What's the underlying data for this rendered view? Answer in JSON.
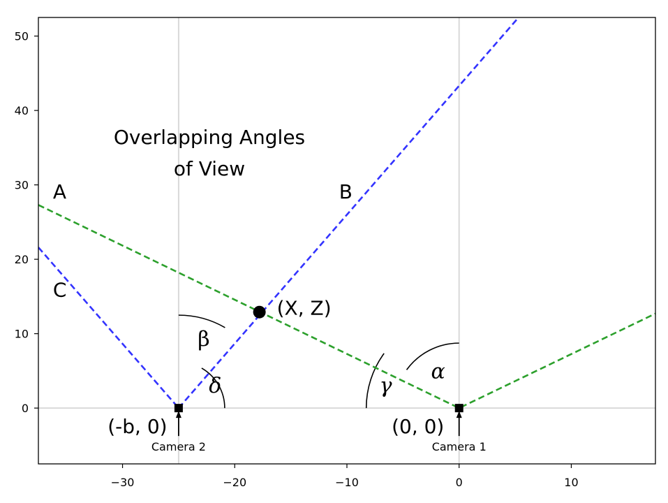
{
  "chart_data": {
    "type": "line",
    "title": "Overlapping Angles of View",
    "title_lines": [
      "Overlapping Angles",
      "of View"
    ],
    "xlabel": "",
    "ylabel": "",
    "xlim": [
      -37.5,
      17.5
    ],
    "ylim": [
      -7.5,
      52.5
    ],
    "x_ticks": [
      -30,
      -20,
      -10,
      0,
      10
    ],
    "x_tick_labels": [
      "−30",
      "−20",
      "−10",
      "0",
      "10"
    ],
    "y_ticks": [
      0,
      10,
      20,
      30,
      40,
      50
    ],
    "y_tick_labels": [
      "0",
      "10",
      "20",
      "30",
      "40",
      "50"
    ],
    "vertical_reference_lines": [
      -25,
      0
    ],
    "horizontal_reference_lines": [
      0
    ],
    "colors": {
      "green": "#2ca02c",
      "blue": "#3333ff",
      "grid": "#d9d9d9"
    },
    "series": [
      {
        "name": "A",
        "color": "green",
        "style": "dashed",
        "points": [
          [
            -37.5,
            27.3
          ],
          [
            0,
            0
          ],
          [
            17.5,
            12.7
          ]
        ]
      },
      {
        "name": "C",
        "color": "blue",
        "style": "dashed",
        "points": [
          [
            -37.5,
            21.6
          ],
          [
            -25,
            0
          ]
        ]
      },
      {
        "name": "B",
        "color": "blue",
        "style": "dashed",
        "points": [
          [
            -25,
            0
          ],
          [
            5.3,
            52.5
          ]
        ]
      }
    ],
    "points": [
      {
        "name": "intersection",
        "label": "(X, Z)",
        "x": -17.8,
        "y": 12.9
      }
    ],
    "cameras": [
      {
        "name": "camera-1",
        "label": "Camera 1",
        "coord_label": "(0, 0)",
        "x": 0,
        "y": 0
      },
      {
        "name": "camera-2",
        "label": "Camera 2",
        "coord_label": "(-b, 0)",
        "x": -25,
        "y": 0
      }
    ],
    "line_labels": [
      {
        "name": "line-label-a",
        "text": "A",
        "x": -36.2,
        "y": 28.2
      },
      {
        "name": "line-label-b",
        "text": "B",
        "x": -10.7,
        "y": 28.2
      },
      {
        "name": "line-label-c",
        "text": "C",
        "x": -36.2,
        "y": 15.0
      }
    ],
    "angle_labels": [
      {
        "name": "alpha",
        "text": "α",
        "x": -2.5,
        "y": 4.0
      },
      {
        "name": "beta",
        "text": "β",
        "x": -23.3,
        "y": 8.3
      },
      {
        "name": "gamma",
        "text": "γ",
        "x": -7.1,
        "y": 2.1
      },
      {
        "name": "delta",
        "text": "δ",
        "x": -22.3,
        "y": 2.1
      }
    ]
  }
}
